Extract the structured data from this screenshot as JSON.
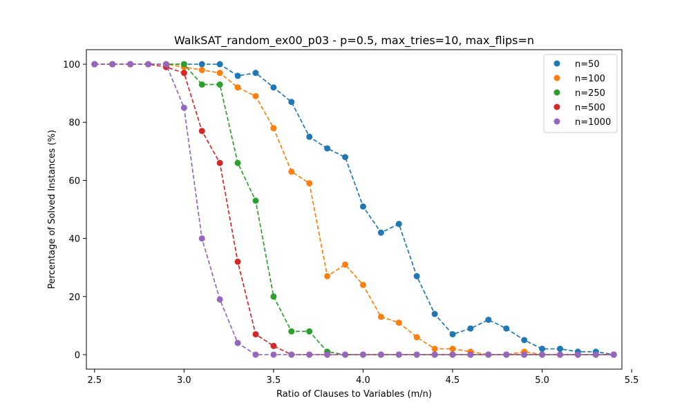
{
  "chart_data": {
    "type": "line",
    "title": "WalkSAT_random_ex00_p03 - p=0.5, max_tries=10, max_flips=n",
    "xlabel": "Ratio of Clauses to Variables (m/n)",
    "ylabel": "Percentage of Solved Instances (%)",
    "xlim": [
      2.4545,
      5.4455
    ],
    "ylim": [
      -5,
      105
    ],
    "xticks": [
      2.5,
      3.0,
      3.5,
      4.0,
      4.5,
      5.0,
      5.5
    ],
    "xtick_labels": [
      "2.5",
      "3.0",
      "3.5",
      "4.0",
      "4.5",
      "5.0",
      "5.5"
    ],
    "yticks": [
      0,
      20,
      40,
      60,
      80,
      100
    ],
    "ytick_labels": [
      "0",
      "20",
      "40",
      "60",
      "80",
      "100"
    ],
    "line_style": "dashed",
    "marker": "circle",
    "grid": false,
    "legend_position": "top-right",
    "x": [
      2.5,
      2.6,
      2.7,
      2.8,
      2.9,
      3.0,
      3.1,
      3.2,
      3.3,
      3.4,
      3.5,
      3.6,
      3.7,
      3.8,
      3.9,
      4.0,
      4.1,
      4.2,
      4.3,
      4.4,
      4.5,
      4.6,
      4.7,
      4.8,
      4.9,
      5.0,
      5.1,
      5.2,
      5.3,
      5.4
    ],
    "series": [
      {
        "name": "n=50",
        "color": "#1f77b4",
        "values": [
          100,
          100,
          100,
          100,
          100,
          100,
          100,
          100,
          96,
          97,
          92,
          87,
          75,
          71,
          68,
          51,
          42,
          45,
          27,
          14,
          7,
          9,
          12,
          9,
          5,
          2,
          2,
          1,
          1,
          0
        ]
      },
      {
        "name": "n=100",
        "color": "#ff7f0e",
        "values": [
          100,
          100,
          100,
          100,
          100,
          99,
          98,
          97,
          92,
          89,
          78,
          63,
          59,
          27,
          31,
          24,
          13,
          11,
          6,
          2,
          2,
          1,
          0,
          0,
          1,
          0,
          0,
          0,
          0,
          0
        ]
      },
      {
        "name": "n=250",
        "color": "#2ca02c",
        "values": [
          100,
          100,
          100,
          100,
          100,
          100,
          93,
          93,
          66,
          53,
          20,
          8,
          8,
          1,
          0,
          0,
          0,
          0,
          0,
          0,
          0,
          0,
          0,
          0,
          0,
          0,
          0,
          0,
          0,
          0
        ]
      },
      {
        "name": "n=500",
        "color": "#d62728",
        "values": [
          100,
          100,
          100,
          100,
          99,
          97,
          77,
          66,
          32,
          7,
          3,
          0,
          0,
          0,
          0,
          0,
          0,
          0,
          0,
          0,
          0,
          0,
          0,
          0,
          0,
          0,
          0,
          0,
          0,
          0
        ]
      },
      {
        "name": "n=1000",
        "color": "#9467bd",
        "values": [
          100,
          100,
          100,
          100,
          100,
          85,
          40,
          19,
          4,
          0,
          0,
          0,
          0,
          0,
          0,
          0,
          0,
          0,
          0,
          0,
          0,
          0,
          0,
          0,
          0,
          0,
          0,
          0,
          0,
          0
        ]
      }
    ]
  }
}
